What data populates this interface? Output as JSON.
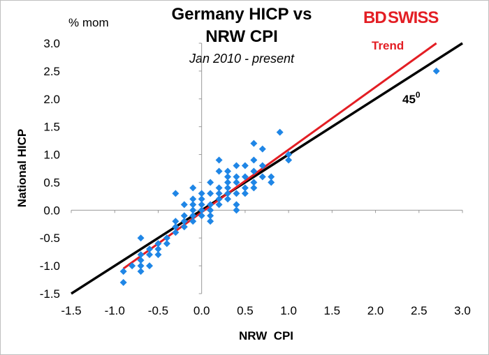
{
  "brand": {
    "logo_text_bd": "BD",
    "logo_text_swiss": "SWISS"
  },
  "chart_data": {
    "type": "scatter",
    "title_line1": "Germany HICP vs",
    "title_line2": "NRW CPI",
    "subtitle": "Jan 2010 - present",
    "xlabel": "NRW  CPI",
    "ylabel": "National HICP",
    "y_unit": "% mom",
    "xlim": [
      -1.5,
      3.0
    ],
    "ylim": [
      -1.5,
      3.0
    ],
    "x_ticks": [
      "-1.5",
      "-1.0",
      "-0.5",
      "0.0",
      "0.5",
      "1.0",
      "1.5",
      "2.0",
      "2.5",
      "3.0"
    ],
    "y_ticks": [
      "-1.5",
      "-1.0",
      "-0.5",
      "0.0",
      "0.5",
      "1.0",
      "1.5",
      "2.0",
      "2.5",
      "3.0"
    ],
    "grid": false,
    "marker_color": "#1f86e6",
    "points": [
      [
        2.7,
        2.5
      ],
      [
        0.9,
        1.4
      ],
      [
        1.0,
        1.0
      ],
      [
        1.0,
        0.9
      ],
      [
        0.8,
        0.6
      ],
      [
        0.8,
        0.5
      ],
      [
        0.6,
        1.2
      ],
      [
        0.7,
        1.1
      ],
      [
        0.6,
        0.9
      ],
      [
        0.7,
        0.8
      ],
      [
        0.6,
        0.7
      ],
      [
        0.7,
        0.6
      ],
      [
        0.5,
        0.8
      ],
      [
        0.6,
        0.5
      ],
      [
        0.5,
        0.6
      ],
      [
        0.5,
        0.4
      ],
      [
        0.6,
        0.4
      ],
      [
        0.5,
        0.3
      ],
      [
        0.4,
        0.8
      ],
      [
        0.4,
        0.6
      ],
      [
        0.4,
        0.5
      ],
      [
        0.4,
        0.3
      ],
      [
        0.4,
        0.1
      ],
      [
        0.4,
        0.0
      ],
      [
        0.3,
        0.7
      ],
      [
        0.3,
        0.6
      ],
      [
        0.3,
        0.5
      ],
      [
        0.3,
        0.4
      ],
      [
        0.3,
        0.3
      ],
      [
        0.3,
        0.2
      ],
      [
        0.2,
        0.9
      ],
      [
        0.2,
        0.7
      ],
      [
        0.2,
        0.4
      ],
      [
        0.2,
        0.3
      ],
      [
        0.2,
        0.2
      ],
      [
        0.2,
        0.1
      ],
      [
        0.1,
        0.5
      ],
      [
        0.1,
        0.3
      ],
      [
        0.1,
        0.1
      ],
      [
        0.1,
        0.0
      ],
      [
        0.1,
        -0.1
      ],
      [
        0.1,
        -0.2
      ],
      [
        0.0,
        0.3
      ],
      [
        0.0,
        0.2
      ],
      [
        0.0,
        0.1
      ],
      [
        0.0,
        0.0
      ],
      [
        0.0,
        -0.1
      ],
      [
        -0.1,
        0.4
      ],
      [
        -0.1,
        0.2
      ],
      [
        -0.1,
        0.1
      ],
      [
        -0.1,
        0.0
      ],
      [
        -0.1,
        -0.1
      ],
      [
        -0.1,
        -0.2
      ],
      [
        -0.2,
        0.1
      ],
      [
        -0.2,
        -0.1
      ],
      [
        -0.2,
        -0.2
      ],
      [
        -0.2,
        -0.3
      ],
      [
        -0.3,
        0.3
      ],
      [
        -0.3,
        -0.2
      ],
      [
        -0.3,
        -0.3
      ],
      [
        -0.3,
        -0.4
      ],
      [
        -0.4,
        -0.5
      ],
      [
        -0.4,
        -0.6
      ],
      [
        -0.5,
        -0.6
      ],
      [
        -0.5,
        -0.7
      ],
      [
        -0.5,
        -0.8
      ],
      [
        -0.6,
        -0.7
      ],
      [
        -0.6,
        -0.8
      ],
      [
        -0.6,
        -1.0
      ],
      [
        -0.7,
        -0.5
      ],
      [
        -0.7,
        -0.8
      ],
      [
        -0.7,
        -0.9
      ],
      [
        -0.7,
        -1.0
      ],
      [
        -0.7,
        -1.1
      ],
      [
        -0.8,
        -1.0
      ],
      [
        -0.9,
        -1.1
      ],
      [
        -0.9,
        -1.3
      ]
    ],
    "trend_line": {
      "name": "Trend",
      "color": "#e31e24",
      "x": [
        -0.9,
        2.7
      ],
      "y": [
        -1.05,
        3.0
      ]
    },
    "reference_line": {
      "label_base": "45",
      "label_sup": "0",
      "color": "#000000",
      "x": [
        -1.5,
        3.0
      ],
      "y": [
        -1.5,
        3.0
      ]
    }
  }
}
